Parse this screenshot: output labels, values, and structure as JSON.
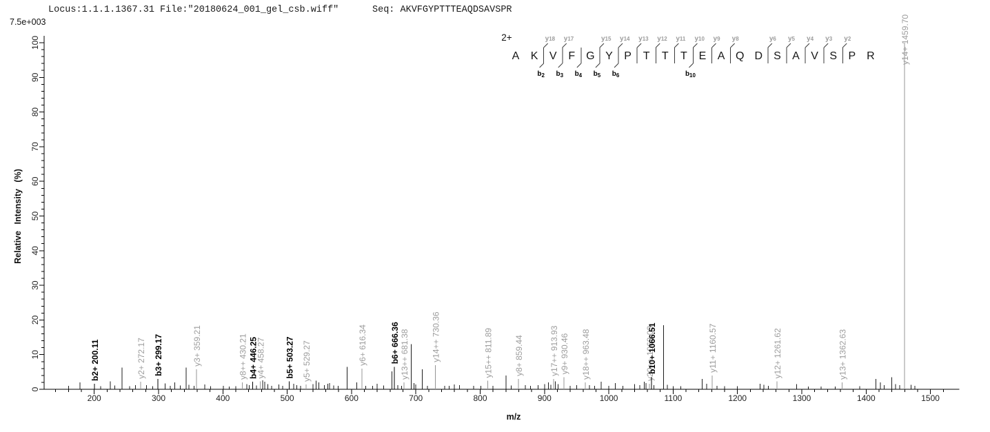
{
  "header": {
    "locus_file": "Locus:1.1.1.1367.31 File:\"20180624_001_gel_csb.wiff\"",
    "seq": "Seq: AKVFGYPTTTEAQDSAVSPR",
    "scale_label": "7.5e+003"
  },
  "colors": {
    "axis": "#000000",
    "tick_label": "#222222",
    "b_ion_label": "#000000",
    "y_ion_label": "#9c9c9c",
    "b_peak": "#000000",
    "y_peak": "#949494",
    "unlabeled_peak": "#1c1c1c",
    "sequence_letter": "#161616",
    "cleavage_mark": "#3a3a3a"
  },
  "sequence_annotation": {
    "charge_label": "2+",
    "residues": [
      "A",
      "K",
      "V",
      "F",
      "G",
      "Y",
      "P",
      "T",
      "T",
      "T",
      "E",
      "A",
      "Q",
      "D",
      "S",
      "A",
      "V",
      "S",
      "P",
      "R"
    ],
    "y_ions": [
      {
        "label": "y18",
        "gap": 1
      },
      {
        "label": "y17",
        "gap": 2
      },
      {
        "label": "y15",
        "gap": 4
      },
      {
        "label": "y14",
        "gap": 5
      },
      {
        "label": "y13",
        "gap": 6
      },
      {
        "label": "y12",
        "gap": 7
      },
      {
        "label": "y11",
        "gap": 8
      },
      {
        "label": "y10",
        "gap": 9
      },
      {
        "label": "y9",
        "gap": 10
      },
      {
        "label": "y8",
        "gap": 11
      },
      {
        "label": "y6",
        "gap": 13
      },
      {
        "label": "y5",
        "gap": 14
      },
      {
        "label": "y4",
        "gap": 15
      },
      {
        "label": "y3",
        "gap": 16
      },
      {
        "label": "y2",
        "gap": 17
      }
    ],
    "b_ions": [
      {
        "label": "b2",
        "gap": 1
      },
      {
        "label": "b3",
        "gap": 2
      },
      {
        "label": "b4",
        "gap": 3
      },
      {
        "label": "b5",
        "gap": 4
      },
      {
        "label": "b6",
        "gap": 5
      },
      {
        "label": "b10",
        "gap": 9
      }
    ]
  },
  "chart_data": {
    "type": "bar",
    "title": "",
    "xlabel": "m/z",
    "ylabel": "Relative Intensity (%)",
    "xlim": [
      120,
      1540
    ],
    "ylim": [
      0,
      100
    ],
    "grid": false,
    "x_ticks": {
      "minor_start": 140,
      "minor_end": 1520,
      "minor_step": 20,
      "major_start": 200,
      "major_end": 1500,
      "major_step": 100
    },
    "y_ticks": {
      "min": 0,
      "max": 100,
      "minor_step": 2,
      "major_step": 10
    },
    "labeled_peaks": [
      {
        "mz": 200.11,
        "intensity": 1.6,
        "label": "b2+ 200.11",
        "ion": "b"
      },
      {
        "mz": 272.17,
        "intensity": 2.2,
        "label": "y2+ 272.17",
        "ion": "y"
      },
      {
        "mz": 299.17,
        "intensity": 3.0,
        "label": "b3+ 299.17",
        "ion": "b"
      },
      {
        "mz": 359.21,
        "intensity": 5.8,
        "label": "y3+ 359.21",
        "ion": "y"
      },
      {
        "mz": 430.21,
        "intensity": 2.0,
        "label": "y8++ 430.21",
        "ion": "y"
      },
      {
        "mz": 446.25,
        "intensity": 2.2,
        "label": "b4+ 446.25",
        "ion": "b"
      },
      {
        "mz": 458.27,
        "intensity": 2.3,
        "label": "y4+ 458.27",
        "ion": "y"
      },
      {
        "mz": 503.27,
        "intensity": 2.3,
        "label": "b5+ 503.27",
        "ion": "b"
      },
      {
        "mz": 529.27,
        "intensity": 1.4,
        "label": "y5+ 529.27",
        "ion": "y"
      },
      {
        "mz": 616.34,
        "intensity": 6.0,
        "label": "y6+ 616.34",
        "ion": "y"
      },
      {
        "mz": 666.36,
        "intensity": 6.5,
        "label": "b6+ 666.36",
        "ion": "b"
      },
      {
        "mz": 681.38,
        "intensity": 2.0,
        "label": "y13++ 681.38",
        "ion": "y"
      },
      {
        "mz": 730.36,
        "intensity": 7.0,
        "label": "y14++ 730.36",
        "ion": "y"
      },
      {
        "mz": 811.89,
        "intensity": 2.5,
        "label": "y15++ 811.89",
        "ion": "y"
      },
      {
        "mz": 859.44,
        "intensity": 3.0,
        "label": "y8+ 859.44",
        "ion": "y"
      },
      {
        "mz": 913.93,
        "intensity": 3.0,
        "label": "y17++ 913.93",
        "ion": "y"
      },
      {
        "mz": 930.46,
        "intensity": 3.5,
        "label": "y9+ 930.46",
        "ion": "y"
      },
      {
        "mz": 963.48,
        "intensity": 2.0,
        "label": "y18++ 963.48",
        "ion": "y"
      },
      {
        "mz": 1063.03,
        "intensity": 1.6,
        "label": "y20++ 1063.03",
        "ion": "y"
      },
      {
        "mz": 1066.51,
        "intensity": 3.6,
        "label": "b10+ 1066.51",
        "ion": "b"
      },
      {
        "mz": 1160.57,
        "intensity": 4.0,
        "label": "y11+ 1160.57",
        "ion": "y"
      },
      {
        "mz": 1261.62,
        "intensity": 2.3,
        "label": "y12+ 1261.62",
        "ion": "y"
      },
      {
        "mz": 1362.63,
        "intensity": 2.0,
        "label": "y13+ 1362.63",
        "ion": "y"
      },
      {
        "mz": 1459.7,
        "intensity": 100,
        "label": "y14+ 1459.70",
        "ion": "y"
      }
    ],
    "unlabeled_peaks": [
      [
        160,
        1.0
      ],
      [
        178,
        2.0
      ],
      [
        210,
        0.9
      ],
      [
        225,
        2.3
      ],
      [
        232,
        1.1
      ],
      [
        243,
        6.3
      ],
      [
        255,
        0.9
      ],
      [
        264,
        1.2
      ],
      [
        281,
        1.2
      ],
      [
        291,
        0.9
      ],
      [
        310,
        1.7
      ],
      [
        318,
        1.0
      ],
      [
        325,
        2.0
      ],
      [
        334,
        1.1
      ],
      [
        343,
        6.3
      ],
      [
        347,
        1.3
      ],
      [
        355,
        1.0
      ],
      [
        372,
        1.4
      ],
      [
        381,
        0.9
      ],
      [
        401,
        1.0
      ],
      [
        410,
        0.8
      ],
      [
        420,
        0.9
      ],
      [
        437,
        1.5
      ],
      [
        441,
        1.2
      ],
      [
        452,
        1.1
      ],
      [
        462,
        2.6
      ],
      [
        465,
        2.2
      ],
      [
        470,
        1.5
      ],
      [
        476,
        1.0
      ],
      [
        487,
        1.4
      ],
      [
        493,
        1.0
      ],
      [
        510,
        1.6
      ],
      [
        515,
        1.2
      ],
      [
        521,
        1.0
      ],
      [
        540,
        1.5
      ],
      [
        545,
        2.5
      ],
      [
        549,
        2.0
      ],
      [
        558,
        1.2
      ],
      [
        563,
        1.6
      ],
      [
        566,
        1.8
      ],
      [
        572,
        1.1
      ],
      [
        579,
        1.0
      ],
      [
        593,
        6.5
      ],
      [
        608,
        2.0
      ],
      [
        622,
        1.0
      ],
      [
        633,
        1.0
      ],
      [
        640,
        1.6
      ],
      [
        650,
        1.1
      ],
      [
        663,
        5.2
      ],
      [
        672,
        1.2
      ],
      [
        678,
        1.0
      ],
      [
        693,
        13.0
      ],
      [
        697,
        1.8
      ],
      [
        700,
        1.4
      ],
      [
        710,
        5.8
      ],
      [
        718,
        1.0
      ],
      [
        745,
        1.0
      ],
      [
        752,
        1.0
      ],
      [
        760,
        1.4
      ],
      [
        768,
        1.2
      ],
      [
        790,
        1.0
      ],
      [
        801,
        1.0
      ],
      [
        820,
        1.0
      ],
      [
        840,
        4.0
      ],
      [
        848,
        1.1
      ],
      [
        870,
        1.2
      ],
      [
        878,
        1.0
      ],
      [
        890,
        1.2
      ],
      [
        900,
        1.5
      ],
      [
        906,
        2.0
      ],
      [
        910,
        1.3
      ],
      [
        917,
        2.3
      ],
      [
        921,
        1.5
      ],
      [
        940,
        1.0
      ],
      [
        950,
        1.2
      ],
      [
        970,
        1.2
      ],
      [
        978,
        1.0
      ],
      [
        988,
        2.2
      ],
      [
        1000,
        1.0
      ],
      [
        1010,
        1.8
      ],
      [
        1022,
        1.0
      ],
      [
        1040,
        1.5
      ],
      [
        1048,
        1.2
      ],
      [
        1055,
        2.2
      ],
      [
        1058,
        1.8
      ],
      [
        1070,
        1.2
      ],
      [
        1085,
        18.5
      ],
      [
        1091,
        1.3
      ],
      [
        1100,
        0.9
      ],
      [
        1112,
        0.9
      ],
      [
        1145,
        3.0
      ],
      [
        1152,
        1.6
      ],
      [
        1168,
        1.0
      ],
      [
        1180,
        0.9
      ],
      [
        1200,
        0.9
      ],
      [
        1235,
        1.6
      ],
      [
        1241,
        1.3
      ],
      [
        1248,
        1.0
      ],
      [
        1292,
        1.5
      ],
      [
        1310,
        0.8
      ],
      [
        1330,
        0.8
      ],
      [
        1352,
        0.8
      ],
      [
        1390,
        0.9
      ],
      [
        1415,
        3.0
      ],
      [
        1422,
        2.0
      ],
      [
        1428,
        1.2
      ],
      [
        1440,
        3.5
      ],
      [
        1446,
        1.5
      ],
      [
        1452,
        1.2
      ],
      [
        1470,
        1.3
      ],
      [
        1476,
        1.0
      ]
    ]
  }
}
